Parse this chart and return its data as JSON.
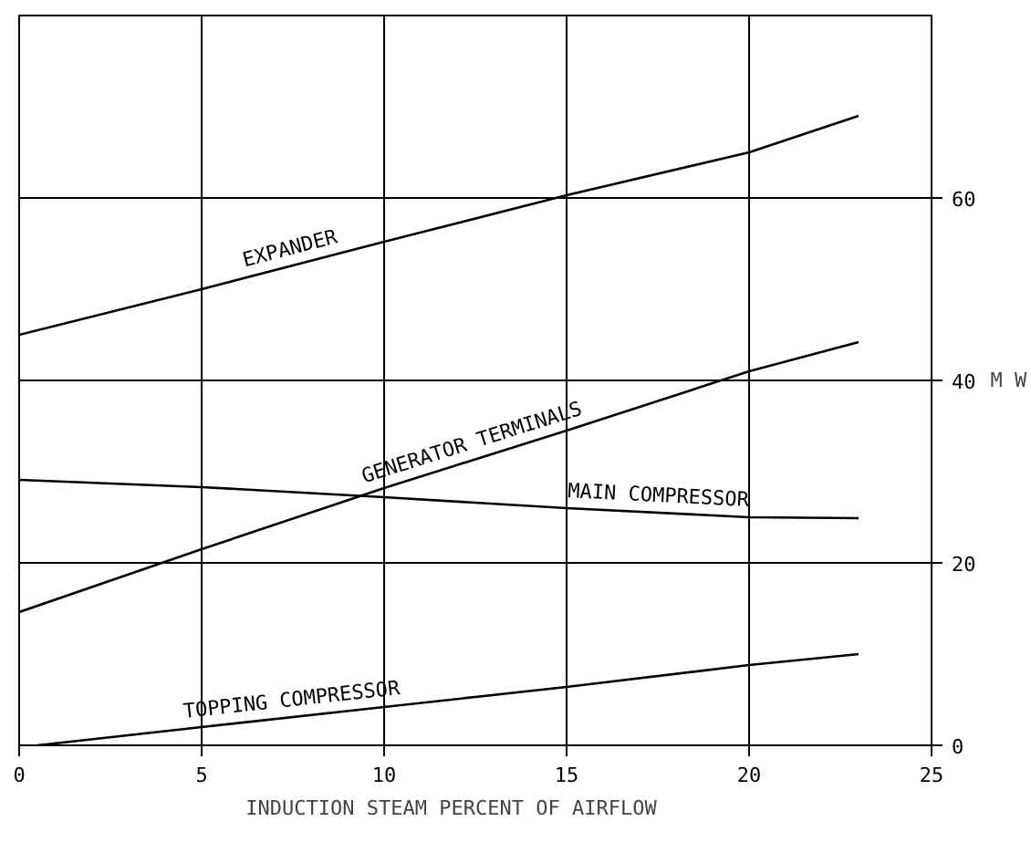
{
  "chart_data": {
    "type": "line",
    "xlabel": "INDUCTION  STEAM  PERCENT  OF  AIRFLOW",
    "ylabel": "M W",
    "xlim": [
      0,
      25
    ],
    "ylim": [
      0,
      80
    ],
    "xticks": [
      0,
      5,
      10,
      15,
      20,
      25
    ],
    "yticks": [
      0,
      20,
      40,
      60
    ],
    "grid": true,
    "marker": "none",
    "line_style": "solid",
    "series": [
      {
        "name": "EXPANDER",
        "color": "#000000",
        "x": [
          0,
          5,
          10,
          15,
          20,
          23
        ],
        "values": [
          45,
          50,
          55.2,
          60.3,
          65,
          69
        ]
      },
      {
        "name": "GENERATOR TERMINALS",
        "color": "#000000",
        "x": [
          0,
          5,
          10,
          15,
          20,
          23
        ],
        "values": [
          14.6,
          21.5,
          28.2,
          34.5,
          41,
          44.2
        ]
      },
      {
        "name": "MAIN COMPRESSOR",
        "color": "#000000",
        "x": [
          0,
          5,
          10,
          15,
          20,
          23
        ],
        "values": [
          29.1,
          28.3,
          27.2,
          26,
          25,
          24.9
        ]
      },
      {
        "name": "TOPPING COMPRESSOR",
        "color": "#000000",
        "x": [
          0.5,
          5,
          10,
          15,
          20,
          23
        ],
        "values": [
          0,
          2,
          4.2,
          6.4,
          8.8,
          10
        ]
      }
    ]
  }
}
